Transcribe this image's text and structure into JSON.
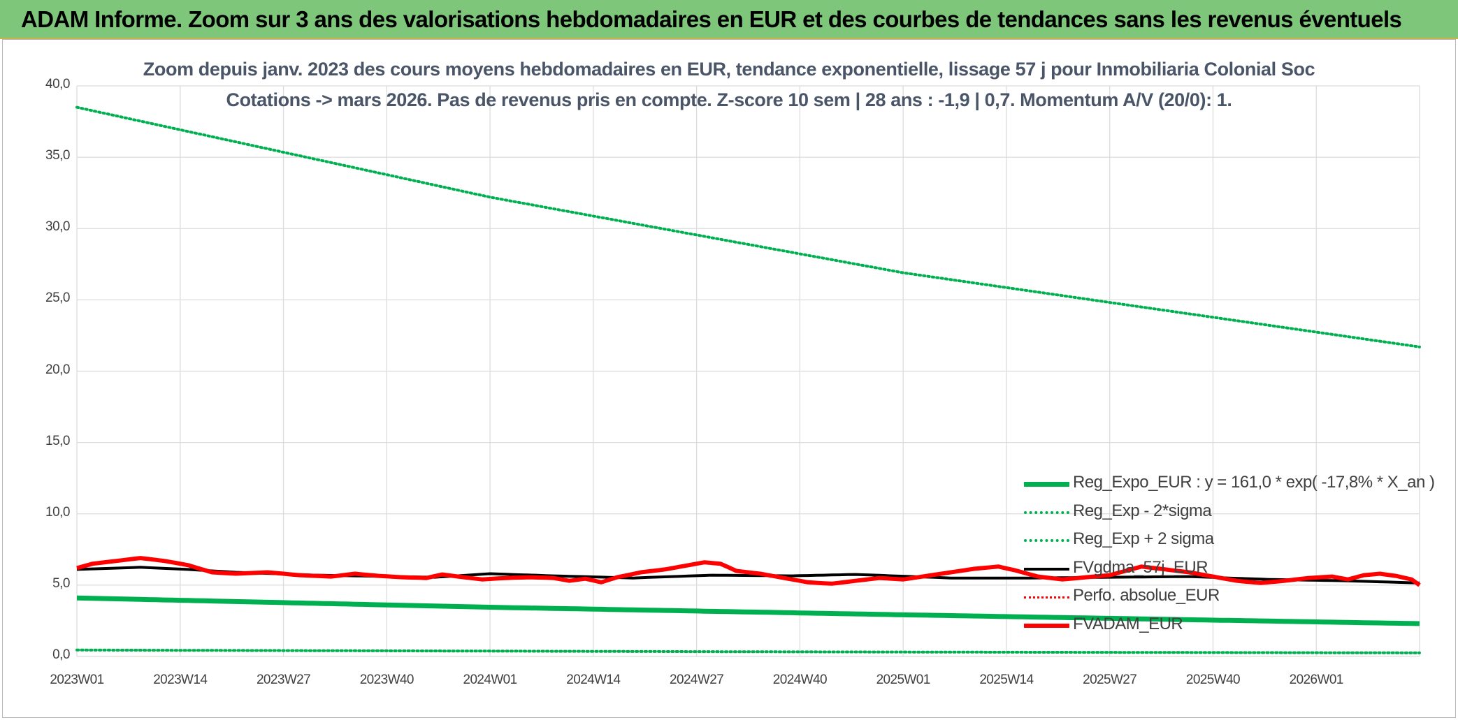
{
  "banner": {
    "title": "ADAM Informe. Zoom sur 3 ans des valorisations hebdomadaires en EUR et des courbes de tendances sans les revenus éventuels"
  },
  "chart_data": {
    "type": "line",
    "title": "Zoom depuis janv. 2023 des cours moyens hebdomadaires en EUR, tendance exponentielle, lissage 57 j pour Inmobiliaria Colonial Soc",
    "subtitle": "Cotations -> mars 2026. Pas de revenus pris en compte. Z-score 10 sem | 28 ans : -1,9 | 0,7. Momentum A/V (20/0): 1.",
    "xlabel": "",
    "ylabel": "",
    "ylim": [
      0,
      40
    ],
    "yticks": [
      "0,0",
      "5,0",
      "10,0",
      "15,0",
      "20,0",
      "25,0",
      "30,0",
      "35,0",
      "40,0"
    ],
    "x_tick_labels": [
      "2023W01",
      "2023W14",
      "2023W27",
      "2023W40",
      "2024W01",
      "2024W14",
      "2024W27",
      "2024W40",
      "2025W01",
      "2025W14",
      "2025W27",
      "2025W40",
      "2026W01"
    ],
    "x_count": 170,
    "grid": true,
    "legend_position": "right",
    "series": [
      {
        "name": "Reg_Expo_EUR : y = 161,0 * exp( -17,8% *  X_an )",
        "color": "#00b050",
        "style": "solid",
        "width": 7,
        "anchors": [
          [
            0,
            4.1
          ],
          [
            52,
            3.45
          ],
          [
            104,
            2.92
          ],
          [
            169,
            2.3
          ]
        ]
      },
      {
        "name": "Reg_Exp - 2*sigma",
        "color": "#00b050",
        "style": "dotted",
        "width": 4,
        "anchors": [
          [
            0,
            0.45
          ],
          [
            84,
            0.33
          ],
          [
            169,
            0.25
          ]
        ]
      },
      {
        "name": "Reg_Exp + 2 sigma",
        "color": "#00b050",
        "style": "dotted",
        "width": 4,
        "anchors": [
          [
            0,
            38.5
          ],
          [
            52,
            32.2
          ],
          [
            104,
            26.9
          ],
          [
            169,
            21.7
          ]
        ]
      },
      {
        "name": "FVgdma_57j_EUR",
        "color": "#000000",
        "style": "solid",
        "width": 4,
        "anchors": [
          [
            0,
            6.1
          ],
          [
            8,
            6.25
          ],
          [
            14,
            6.1
          ],
          [
            20,
            5.9
          ],
          [
            30,
            5.7
          ],
          [
            45,
            5.55
          ],
          [
            52,
            5.8
          ],
          [
            60,
            5.65
          ],
          [
            70,
            5.5
          ],
          [
            80,
            5.7
          ],
          [
            90,
            5.65
          ],
          [
            98,
            5.75
          ],
          [
            110,
            5.5
          ],
          [
            120,
            5.5
          ],
          [
            130,
            5.55
          ],
          [
            140,
            5.6
          ],
          [
            150,
            5.4
          ],
          [
            160,
            5.3
          ],
          [
            169,
            5.15
          ]
        ]
      },
      {
        "name": "Perfo. absolue_EUR",
        "color": "#ff0000",
        "style": "dotted",
        "width": 3,
        "anchors": []
      },
      {
        "name": "FVADAM_EUR",
        "color": "#ff0000",
        "style": "solid",
        "width": 6,
        "anchors": [
          [
            0,
            6.2
          ],
          [
            2,
            6.5
          ],
          [
            5,
            6.7
          ],
          [
            8,
            6.9
          ],
          [
            11,
            6.7
          ],
          [
            14,
            6.4
          ],
          [
            17,
            5.9
          ],
          [
            20,
            5.8
          ],
          [
            24,
            5.9
          ],
          [
            28,
            5.7
          ],
          [
            32,
            5.6
          ],
          [
            35,
            5.8
          ],
          [
            38,
            5.65
          ],
          [
            41,
            5.55
          ],
          [
            44,
            5.5
          ],
          [
            46,
            5.75
          ],
          [
            48,
            5.6
          ],
          [
            51,
            5.4
          ],
          [
            54,
            5.5
          ],
          [
            57,
            5.55
          ],
          [
            60,
            5.5
          ],
          [
            62,
            5.3
          ],
          [
            64,
            5.45
          ],
          [
            66,
            5.2
          ],
          [
            68,
            5.55
          ],
          [
            71,
            5.9
          ],
          [
            74,
            6.1
          ],
          [
            77,
            6.4
          ],
          [
            79,
            6.6
          ],
          [
            81,
            6.5
          ],
          [
            83,
            6.0
          ],
          [
            86,
            5.8
          ],
          [
            89,
            5.5
          ],
          [
            92,
            5.2
          ],
          [
            95,
            5.1
          ],
          [
            98,
            5.3
          ],
          [
            101,
            5.5
          ],
          [
            104,
            5.4
          ],
          [
            107,
            5.65
          ],
          [
            110,
            5.9
          ],
          [
            113,
            6.15
          ],
          [
            116,
            6.3
          ],
          [
            118,
            6.05
          ],
          [
            121,
            5.6
          ],
          [
            124,
            5.4
          ],
          [
            127,
            5.55
          ],
          [
            130,
            5.7
          ],
          [
            134,
            6.3
          ],
          [
            137,
            6.1
          ],
          [
            140,
            5.9
          ],
          [
            143,
            5.6
          ],
          [
            146,
            5.3
          ],
          [
            149,
            5.15
          ],
          [
            152,
            5.3
          ],
          [
            155,
            5.5
          ],
          [
            158,
            5.6
          ],
          [
            160,
            5.4
          ],
          [
            162,
            5.7
          ],
          [
            164,
            5.8
          ],
          [
            166,
            5.65
          ],
          [
            168,
            5.4
          ],
          [
            169,
            5.0
          ]
        ]
      }
    ]
  }
}
